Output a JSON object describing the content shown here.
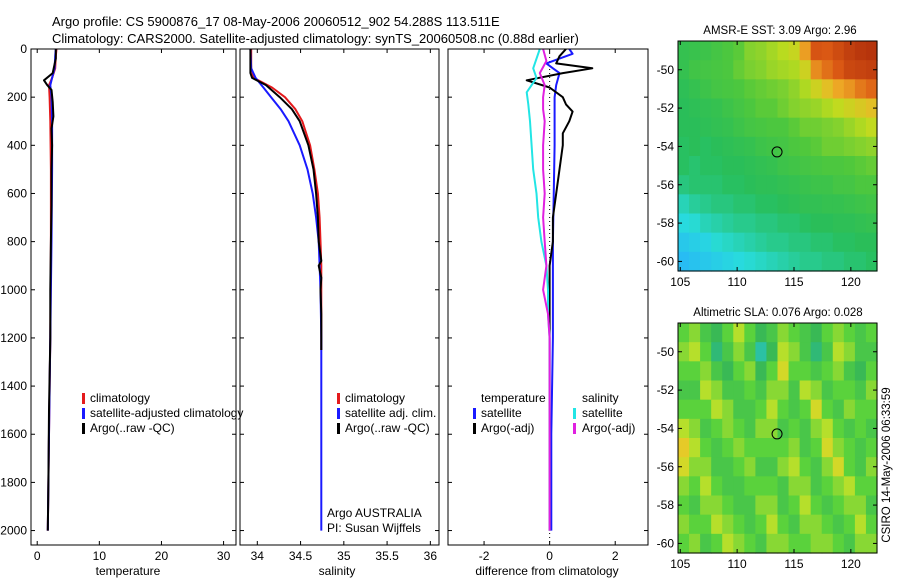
{
  "header": {
    "line1": "Argo profile: CS 5900876_17 08-May-2006 20060512_902 54.288S 113.511E",
    "line2": "Climatology: CARS2000. Satellite-adjusted climatology: synTS_20060508.nc (0.88d earlier)"
  },
  "footer": {
    "stamp": "CSIRO 14-May-2006 06:33:59"
  },
  "colors": {
    "red": "#e41a1c",
    "blue": "#1a1aff",
    "black": "#000000",
    "cyan": "#22e5e5",
    "magenta": "#e020e0"
  },
  "chart_data": [
    {
      "id": "temperature",
      "type": "line",
      "xlabel": "temperature",
      "xlim": [
        -1,
        32
      ],
      "ylim": [
        0,
        2060
      ],
      "xticks": [
        0,
        10,
        20,
        30
      ],
      "yticks": [
        0,
        200,
        400,
        600,
        800,
        1000,
        1200,
        1400,
        1600,
        1800,
        2000
      ],
      "y_reversed": true,
      "legend": [
        "climatology",
        "satellite-adjusted climatology",
        "Argo(..raw -QC)"
      ],
      "series": [
        {
          "name": "climatology",
          "color": "red",
          "depth": [
            0,
            30,
            80,
            120,
            150,
            200,
            300,
            500,
            800,
            1200,
            1600,
            2000
          ],
          "values": [
            3.1,
            3.0,
            2.9,
            2.4,
            1.9,
            2.0,
            2.1,
            2.2,
            2.2,
            2.1,
            1.9,
            1.7
          ]
        },
        {
          "name": "satellite-adjusted climatology",
          "color": "blue",
          "depth": [
            0,
            30,
            80,
            120,
            150,
            200,
            300,
            500,
            800,
            1200,
            1600,
            2000
          ],
          "values": [
            3.0,
            2.9,
            2.8,
            2.4,
            2.1,
            2.3,
            2.4,
            2.4,
            2.3,
            2.1,
            1.9,
            1.7
          ]
        },
        {
          "name": "Argo(..raw -QC)",
          "color": "black",
          "depth": [
            0,
            40,
            100,
            130,
            150,
            170,
            220,
            280,
            330,
            400,
            500,
            650,
            800,
            1000,
            1200,
            1500,
            1800,
            2000
          ],
          "values": [
            3.0,
            3.0,
            2.5,
            1.1,
            1.6,
            2.3,
            2.5,
            2.6,
            2.3,
            2.4,
            2.3,
            2.3,
            2.2,
            2.1,
            2.1,
            1.9,
            1.8,
            1.7
          ]
        }
      ]
    },
    {
      "id": "salinity",
      "type": "line",
      "xlabel": "salinity",
      "xlim": [
        33.8,
        36.1
      ],
      "ylim": [
        0,
        2060
      ],
      "xticks": [
        34,
        34.5,
        35,
        35.5,
        36
      ],
      "xtick_labels": [
        "34",
        "34.5",
        "35",
        "35.5",
        "36"
      ],
      "yticks": [
        0,
        200,
        400,
        600,
        800,
        1000,
        1200,
        1400,
        1600,
        1800,
        2000
      ],
      "y_reversed": true,
      "legend": [
        "climatology",
        "satellite adj. clim.",
        "Argo(..raw -QC)"
      ],
      "annotation": [
        "Argo AUSTRALIA",
        "PI: Susan Wijffels"
      ],
      "series": [
        {
          "name": "climatology",
          "color": "red",
          "depth": [
            0,
            80,
            120,
            160,
            200,
            250,
            300,
            400,
            500,
            600,
            700,
            800,
            900,
            1000,
            1100,
            1200,
            1250
          ],
          "values": [
            33.93,
            33.93,
            33.96,
            34.17,
            34.32,
            34.44,
            34.52,
            34.61,
            34.66,
            34.7,
            34.72,
            34.73,
            34.74,
            34.74,
            34.74,
            34.74,
            34.74
          ]
        },
        {
          "name": "satellite adj. clim.",
          "color": "blue",
          "depth": [
            0,
            80,
            120,
            160,
            200,
            250,
            300,
            400,
            500,
            600,
            700,
            800,
            900,
            1000,
            1200,
            1600,
            2000
          ],
          "values": [
            33.92,
            33.93,
            33.98,
            34.07,
            34.16,
            34.27,
            34.36,
            34.49,
            34.58,
            34.64,
            34.68,
            34.71,
            34.72,
            34.73,
            34.74,
            34.74,
            34.74
          ]
        },
        {
          "name": "Argo(..raw -QC)",
          "color": "black",
          "depth": [
            0,
            100,
            120,
            150,
            200,
            250,
            300,
            400,
            500,
            600,
            700,
            800,
            880,
            900,
            950,
            1000,
            1100,
            1250
          ],
          "values": [
            33.92,
            33.92,
            33.94,
            34.1,
            34.26,
            34.4,
            34.49,
            34.59,
            34.65,
            34.68,
            34.7,
            34.71,
            34.74,
            34.71,
            34.74,
            34.73,
            34.74,
            34.74
          ]
        }
      ]
    },
    {
      "id": "difference",
      "type": "line",
      "xlabel": "difference from climatology",
      "xlim": [
        -3.1,
        3.0
      ],
      "ylim": [
        0,
        2060
      ],
      "xticks": [
        -2,
        0,
        2
      ],
      "yticks": [
        0,
        200,
        400,
        600,
        800,
        1000,
        1200,
        1400,
        1600,
        1800,
        2000
      ],
      "y_reversed": true,
      "legend_left": {
        "title": "temperature",
        "entries": [
          "satellite",
          "Argo(-adj)"
        ]
      },
      "legend_right": {
        "title": "salinity",
        "entries": [
          "satellite",
          "Argo(-adj)"
        ]
      },
      "series": [
        {
          "name": "temperature satellite",
          "color": "blue",
          "depth": [
            0,
            20,
            40,
            60,
            80,
            100,
            150,
            200,
            400,
            800,
            1200,
            1600,
            2000
          ],
          "values": [
            0.6,
            0.7,
            0.3,
            -0.1,
            0.1,
            0.3,
            0.2,
            0.15,
            0.15,
            0.1,
            0.1,
            0.05,
            0.05
          ]
        },
        {
          "name": "temperature Argo(-adj)",
          "color": "black",
          "depth": [
            0,
            30,
            60,
            80,
            100,
            130,
            160,
            200,
            230,
            260,
            300,
            350,
            400,
            500,
            600,
            700,
            800,
            900,
            1000,
            1200,
            1600,
            2000
          ],
          "values": [
            0.5,
            0.3,
            0.2,
            1.3,
            0.4,
            -0.7,
            0.0,
            0.4,
            0.5,
            0.7,
            0.6,
            0.4,
            0.4,
            0.3,
            0.2,
            0.1,
            0.1,
            0.0,
            0.0,
            0.0,
            0.0,
            0.0
          ]
        },
        {
          "name": "salinity satellite",
          "color": "cyan",
          "depth": [
            0,
            80,
            120,
            180,
            230,
            300,
            400,
            500,
            600,
            700,
            800,
            900,
            1000,
            1100,
            1200,
            1600,
            2000
          ],
          "values": [
            -0.3,
            -0.5,
            -0.4,
            -0.7,
            -0.65,
            -0.6,
            -0.55,
            -0.5,
            -0.4,
            -0.35,
            -0.25,
            -0.1,
            -0.05,
            -0.05,
            0.0,
            0.0,
            0.0
          ]
        },
        {
          "name": "salinity Argo(-adj)",
          "color": "magenta",
          "depth": [
            0,
            50,
            100,
            150,
            200,
            250,
            300,
            400,
            500,
            600,
            700,
            800,
            900,
            1000,
            1100,
            1200,
            1600,
            2000
          ],
          "values": [
            -0.2,
            -0.1,
            -0.3,
            -0.15,
            -0.2,
            -0.2,
            -0.15,
            -0.2,
            -0.2,
            -0.15,
            -0.2,
            -0.15,
            -0.1,
            -0.2,
            -0.05,
            0.0,
            0.0,
            0.0
          ]
        }
      ]
    },
    {
      "id": "sst_map",
      "type": "heatmap",
      "title": "AMSR-E SST: 3.09 Argo: 2.96",
      "xlim": [
        104.8,
        122.3
      ],
      "ylim": [
        -60.5,
        -48.5
      ],
      "xticks": [
        105,
        110,
        115,
        120
      ],
      "yticks": [
        -50,
        -52,
        -54,
        -56,
        -58,
        -60
      ],
      "marker": {
        "lon": 113.511,
        "lat": -54.288
      },
      "grid_cols": 18,
      "grid_rows": 12,
      "grid": [
        [
          2.6,
          2.7,
          2.8,
          3.0,
          3.2,
          3.4,
          3.8,
          3.9,
          4.1,
          4.3,
          4.5,
          5.5,
          6.4,
          6.3,
          6.6,
          6.9,
          7.1,
          7.2
        ],
        [
          2.6,
          2.9,
          3.0,
          3.1,
          3.2,
          3.5,
          3.7,
          3.8,
          4.0,
          4.1,
          4.2,
          4.6,
          5.7,
          6.0,
          6.3,
          6.7,
          6.8,
          6.9
        ],
        [
          2.4,
          2.6,
          2.8,
          3.0,
          3.1,
          3.2,
          3.4,
          3.5,
          3.6,
          3.7,
          3.9,
          4.2,
          4.6,
          5.0,
          5.4,
          5.6,
          5.9,
          6.1
        ],
        [
          2.3,
          2.4,
          2.5,
          2.6,
          2.8,
          3.0,
          3.2,
          3.4,
          3.4,
          3.6,
          3.8,
          3.9,
          4.0,
          4.2,
          4.4,
          4.6,
          4.8,
          5.0
        ],
        [
          2.3,
          2.3,
          2.4,
          2.5,
          2.6,
          2.8,
          3.0,
          3.1,
          3.2,
          3.2,
          3.4,
          3.6,
          3.6,
          3.7,
          3.8,
          4.0,
          4.2,
          4.4
        ],
        [
          2.2,
          2.3,
          2.2,
          2.3,
          2.4,
          2.5,
          2.6,
          2.8,
          2.9,
          3.0,
          3.2,
          3.3,
          3.4,
          3.6,
          3.6,
          3.7,
          3.8,
          3.9
        ],
        [
          2.2,
          2.1,
          2.2,
          2.2,
          2.3,
          2.3,
          2.4,
          2.5,
          2.6,
          2.8,
          2.9,
          3.0,
          3.1,
          3.2,
          3.2,
          3.3,
          3.4,
          3.5
        ],
        [
          2.0,
          2.1,
          2.1,
          2.1,
          2.2,
          2.2,
          2.3,
          2.4,
          2.4,
          2.5,
          2.6,
          2.7,
          2.8,
          2.8,
          3.0,
          3.0,
          3.2,
          3.2
        ],
        [
          1.6,
          1.8,
          1.9,
          2.0,
          2.0,
          2.1,
          2.1,
          2.2,
          2.2,
          2.3,
          2.4,
          2.5,
          2.5,
          2.6,
          2.6,
          2.7,
          2.8,
          2.9
        ],
        [
          1.3,
          1.4,
          1.6,
          1.7,
          1.8,
          1.9,
          1.9,
          2.0,
          2.0,
          2.1,
          2.1,
          2.2,
          2.3,
          2.3,
          2.4,
          2.4,
          2.5,
          2.6
        ],
        [
          1.0,
          1.1,
          1.2,
          1.4,
          1.5,
          1.6,
          1.7,
          1.8,
          1.9,
          1.9,
          2.0,
          2.0,
          2.1,
          2.1,
          2.2,
          2.2,
          2.3,
          2.3
        ],
        [
          0.8,
          0.9,
          1.0,
          1.1,
          1.2,
          1.3,
          1.4,
          1.5,
          1.6,
          1.7,
          1.8,
          1.9,
          1.9,
          2.0,
          2.0,
          2.1,
          2.1,
          2.2
        ]
      ],
      "vmin": 0.5,
      "vmax": 7.5
    },
    {
      "id": "sla_map",
      "type": "heatmap",
      "title": "Altimetric SLA: 0.076 Argo: 0.028",
      "xlim": [
        104.8,
        122.3
      ],
      "ylim": [
        -60.5,
        -48.5
      ],
      "xticks": [
        105,
        110,
        115,
        120
      ],
      "yticks": [
        -50,
        -52,
        -54,
        -56,
        -58,
        -60
      ],
      "marker": {
        "lon": 113.511,
        "lat": -54.288
      },
      "grid_cols": 18,
      "grid_rows": 12,
      "grid": [
        [
          0.05,
          0.1,
          0.0,
          -0.05,
          0.05,
          0.15,
          0.05,
          -0.05,
          0.0,
          0.1,
          0.05,
          0.0,
          -0.05,
          0.05,
          0.1,
          0.05,
          0.0,
          0.05
        ],
        [
          0.1,
          0.15,
          0.05,
          -0.1,
          0.0,
          0.1,
          0.0,
          -0.15,
          -0.05,
          0.15,
          0.1,
          0.0,
          -0.1,
          0.0,
          0.15,
          0.1,
          0.0,
          0.0
        ],
        [
          0.05,
          0.05,
          0.1,
          0.0,
          -0.05,
          0.05,
          0.1,
          -0.05,
          0.05,
          0.2,
          0.05,
          0.05,
          0.0,
          0.05,
          0.1,
          0.0,
          -0.05,
          0.05
        ],
        [
          0.0,
          0.0,
          0.15,
          0.1,
          0.0,
          0.0,
          0.05,
          0.0,
          0.1,
          0.1,
          0.0,
          0.15,
          0.1,
          0.0,
          0.05,
          0.05,
          0.0,
          0.1
        ],
        [
          0.05,
          0.05,
          0.05,
          0.15,
          0.1,
          0.0,
          0.0,
          0.05,
          0.15,
          0.05,
          0.0,
          0.05,
          0.2,
          0.05,
          0.0,
          0.1,
          0.05,
          0.05
        ],
        [
          0.15,
          0.1,
          0.0,
          0.05,
          0.1,
          0.05,
          0.0,
          0.1,
          0.1,
          0.0,
          0.05,
          0.0,
          0.1,
          0.15,
          0.05,
          0.0,
          0.05,
          0.0
        ],
        [
          0.25,
          0.15,
          0.05,
          0.0,
          0.05,
          0.1,
          0.05,
          0.05,
          0.05,
          0.05,
          0.1,
          0.0,
          0.05,
          0.2,
          0.1,
          0.05,
          0.0,
          0.05
        ],
        [
          0.2,
          0.1,
          0.1,
          0.0,
          0.0,
          0.05,
          0.1,
          0.0,
          0.0,
          0.1,
          0.15,
          0.05,
          0.0,
          0.1,
          0.2,
          0.05,
          0.0,
          0.1
        ],
        [
          0.1,
          0.05,
          0.15,
          0.05,
          0.0,
          0.0,
          0.05,
          0.05,
          0.05,
          0.0,
          0.1,
          0.1,
          0.0,
          0.05,
          0.1,
          0.15,
          0.05,
          0.05
        ],
        [
          0.05,
          0.0,
          0.1,
          0.1,
          0.05,
          0.0,
          0.0,
          0.1,
          0.1,
          0.0,
          0.05,
          0.15,
          0.05,
          0.0,
          0.05,
          0.1,
          0.1,
          0.0
        ],
        [
          0.1,
          0.05,
          0.05,
          0.15,
          0.1,
          0.05,
          0.0,
          0.05,
          0.15,
          0.05,
          0.0,
          0.1,
          0.1,
          0.05,
          0.0,
          0.05,
          0.15,
          0.05
        ],
        [
          0.05,
          0.1,
          0.0,
          0.05,
          0.15,
          0.1,
          0.05,
          0.0,
          0.1,
          0.1,
          0.05,
          0.05,
          0.1,
          0.1,
          0.05,
          0.0,
          0.1,
          0.1
        ]
      ],
      "vmin": -0.35,
      "vmax": 0.45
    }
  ]
}
